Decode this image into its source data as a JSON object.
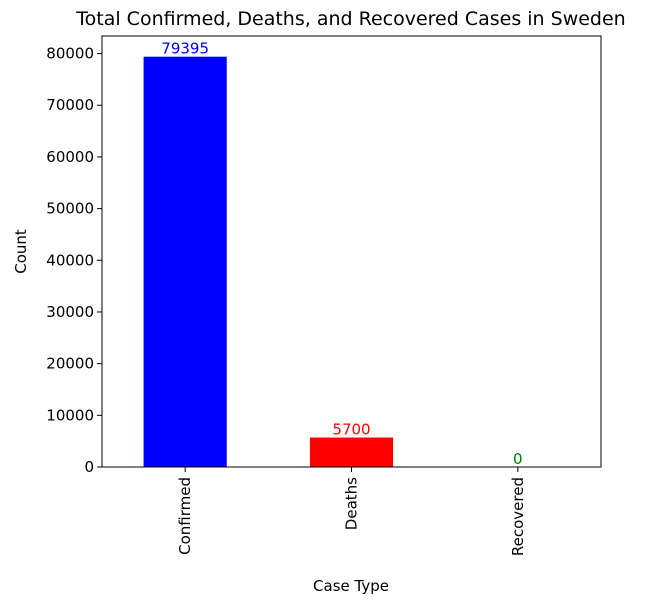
{
  "chart_data": {
    "type": "bar",
    "title": "Total Confirmed, Deaths, and Recovered Cases in Sweden",
    "xlabel": "Case Type",
    "ylabel": "Count",
    "categories": [
      "Confirmed",
      "Deaths",
      "Recovered"
    ],
    "values": [
      79395,
      5700,
      0
    ],
    "data_labels": [
      "79395",
      "5700",
      "0"
    ],
    "colors": [
      "#0000ff",
      "#ff0000",
      "#008000"
    ],
    "label_colors": [
      "#0000ff",
      "#ff0000",
      "#008000"
    ],
    "ylim": [
      0,
      83400
    ],
    "yticks": [
      0,
      10000,
      20000,
      30000,
      40000,
      50000,
      60000,
      70000,
      80000
    ],
    "ytick_labels": [
      "0",
      "10000",
      "20000",
      "30000",
      "40000",
      "50000",
      "60000",
      "70000",
      "80000"
    ],
    "grid": false,
    "legend": "none"
  }
}
